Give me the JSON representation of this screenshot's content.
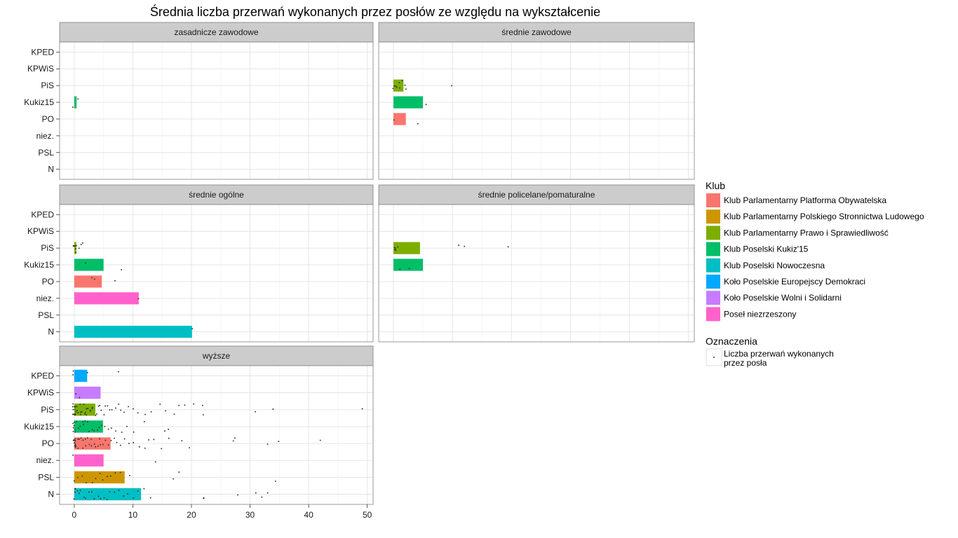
{
  "chart_data": {
    "type": "bar",
    "title": "Średnia liczba przerwań wykonanych przez posłów ze względu na wykształcenie",
    "xlim": [
      -2.5,
      51
    ],
    "x_ticks": [
      "0",
      "10",
      "20",
      "30",
      "40",
      "50"
    ],
    "x_tick_values": [
      0,
      10,
      20,
      30,
      40,
      50
    ],
    "categories": [
      "KPED",
      "KPWiS",
      "PiS",
      "Kukiz15",
      "PO",
      "niez.",
      "PSL",
      "N"
    ],
    "grid": true,
    "legend_position": "right",
    "clubs": [
      {
        "key": "PO",
        "name": "Klub Parlamentarny Platforma Obywatelska",
        "color": "#F8766D"
      },
      {
        "key": "PSL",
        "name": "Klub Parlamentarny Polskiego Stronnictwa Ludowego",
        "color": "#CD9600"
      },
      {
        "key": "PiS",
        "name": "Klub Parlamentarny Prawo i Sprawiedliwość",
        "color": "#7CAE00"
      },
      {
        "key": "Kukiz15",
        "name": "Klub Poselski Kukiz'15",
        "color": "#00BE67"
      },
      {
        "key": "N",
        "name": "Klub Poselski Nowoczesna",
        "color": "#00BFC4"
      },
      {
        "key": "KPED",
        "name": "Koło Poselskie Europejscy Demokraci",
        "color": "#00A9FF"
      },
      {
        "key": "KPWiS",
        "name": "Koło Poselskie Wolni i Solidarni",
        "color": "#C77CFF"
      },
      {
        "key": "niez.",
        "name": "Poseł niezrzeszony",
        "color": "#FF61CC"
      }
    ],
    "legend": {
      "fill_title": "Klub",
      "point_title": "Oznaczenia",
      "point_label_lines": [
        "Liczba przerwań wykonanych",
        " przez posła"
      ]
    },
    "panels": [
      {
        "name": "zasadnicze zawodowe",
        "bars": [
          {
            "category": "Kukiz15",
            "value": 0.4
          }
        ],
        "points": {
          "Kukiz15": [
            0,
            0.7
          ]
        }
      },
      {
        "name": "średnie zawodowe",
        "bars": [
          {
            "category": "PiS",
            "value": 1.7
          },
          {
            "category": "Kukiz15",
            "value": 5.0
          },
          {
            "category": "PO",
            "value": 2.1
          }
        ],
        "points": {
          "PiS": [
            0,
            0,
            0.3,
            0.5,
            0.9,
            1.1,
            1.4,
            1.9,
            2.0,
            10.0
          ],
          "Kukiz15": [
            5.4
          ],
          "PO": [
            0,
            4.0
          ]
        }
      },
      {
        "name": "średnie ogólne",
        "bars": [
          {
            "category": "PiS",
            "value": 0.35
          },
          {
            "category": "Kukiz15",
            "value": 5.0
          },
          {
            "category": "PO",
            "value": 4.7
          },
          {
            "category": "niez.",
            "value": 11.0
          },
          {
            "category": "N",
            "value": 20.1
          }
        ],
        "points": {
          "PiS": [
            0,
            0,
            0,
            0,
            0.1,
            0.2,
            0.5,
            0.8,
            1.2,
            1.3
          ],
          "Kukiz15": [
            2.0,
            8.0
          ],
          "PO": [
            3.0,
            3.5,
            7.0
          ],
          "niez.": [
            11.0
          ],
          "N": [
            20.1
          ]
        }
      },
      {
        "name": "średnie policelane/pomaturalne",
        "bars": [
          {
            "category": "PiS",
            "value": 4.5
          },
          {
            "category": "Kukiz15",
            "value": 5.0
          }
        ],
        "points": {
          "PiS": [
            0,
            0.1,
            0.3,
            0.4,
            0.6,
            11.0,
            12.0,
            19.5
          ],
          "Kukiz15": [
            1.0,
            2.8
          ]
        }
      },
      {
        "name": "wyższe",
        "bars": [
          {
            "category": "KPED",
            "value": 2.2
          },
          {
            "category": "KPWiS",
            "value": 4.5
          },
          {
            "category": "PiS",
            "value": 3.6
          },
          {
            "category": "Kukiz15",
            "value": 4.9
          },
          {
            "category": "PO",
            "value": 6.2
          },
          {
            "category": "niez.",
            "value": 5.0
          },
          {
            "category": "PSL",
            "value": 8.6
          },
          {
            "category": "N",
            "value": 11.4
          }
        ],
        "points": {
          "KPED": [
            0,
            0,
            2.1,
            7.5
          ],
          "KPWiS": [
            0.3,
            1.0
          ],
          "PiS": [
            0,
            0,
            0,
            0,
            0,
            0,
            0,
            0,
            0,
            0,
            0,
            0,
            0,
            0,
            0.2,
            0.3,
            0.5,
            0.6,
            0.8,
            1,
            1,
            1.2,
            1.4,
            1.5,
            1.7,
            1.9,
            2,
            2,
            2.2,
            2.4,
            2.6,
            2.8,
            3,
            3,
            3.2,
            3.5,
            3.8,
            4,
            4.3,
            4.6,
            5,
            5.3,
            5.7,
            6,
            6.4,
            7,
            7.5,
            8,
            8.6,
            9.3,
            10,
            11,
            12,
            13,
            14.5,
            15.5,
            17,
            18,
            19,
            20.5,
            22,
            22,
            31,
            34,
            49
          ],
          "Kukiz15": [
            0,
            0,
            0,
            0,
            0,
            0,
            0,
            0.5,
            0.8,
            1,
            1.3,
            1.6,
            2,
            2.3,
            2.6,
            3,
            3.4,
            3.8,
            4.2,
            4.7,
            5.2,
            5.8,
            6.3,
            7,
            8,
            9,
            10,
            12,
            15.5,
            16
          ],
          "PO": [
            0,
            0,
            0,
            0,
            0,
            0,
            0,
            0,
            0,
            0,
            0,
            0,
            0.3,
            0.5,
            0.7,
            1,
            1.2,
            1.4,
            1.6,
            1.8,
            2,
            2.2,
            2.5,
            2.8,
            3,
            3.3,
            3.6,
            4,
            4.3,
            4.6,
            5,
            5.4,
            5.8,
            6.2,
            6.7,
            7.2,
            7.8,
            8.5,
            9.2,
            10,
            11,
            12,
            12.6,
            13.5,
            15,
            16,
            18.5,
            19.5,
            27,
            27.5,
            33,
            35,
            42
          ],
          "niez.": [
            0,
            14
          ],
          "PSL": [
            0,
            0.5,
            1.3,
            2,
            3,
            3.6,
            4.3,
            5,
            5.6,
            6.2,
            7,
            8,
            9.5,
            17,
            18,
            34.5
          ],
          "N": [
            0,
            0,
            0,
            0,
            0.4,
            0.8,
            1.2,
            1.6,
            2,
            2.4,
            3,
            3.5,
            4,
            4.5,
            5,
            5.5,
            6,
            6.8,
            7.5,
            8.3,
            9,
            10,
            11,
            12,
            13,
            22,
            22,
            28,
            31,
            32,
            33
          ]
        }
      }
    ]
  }
}
